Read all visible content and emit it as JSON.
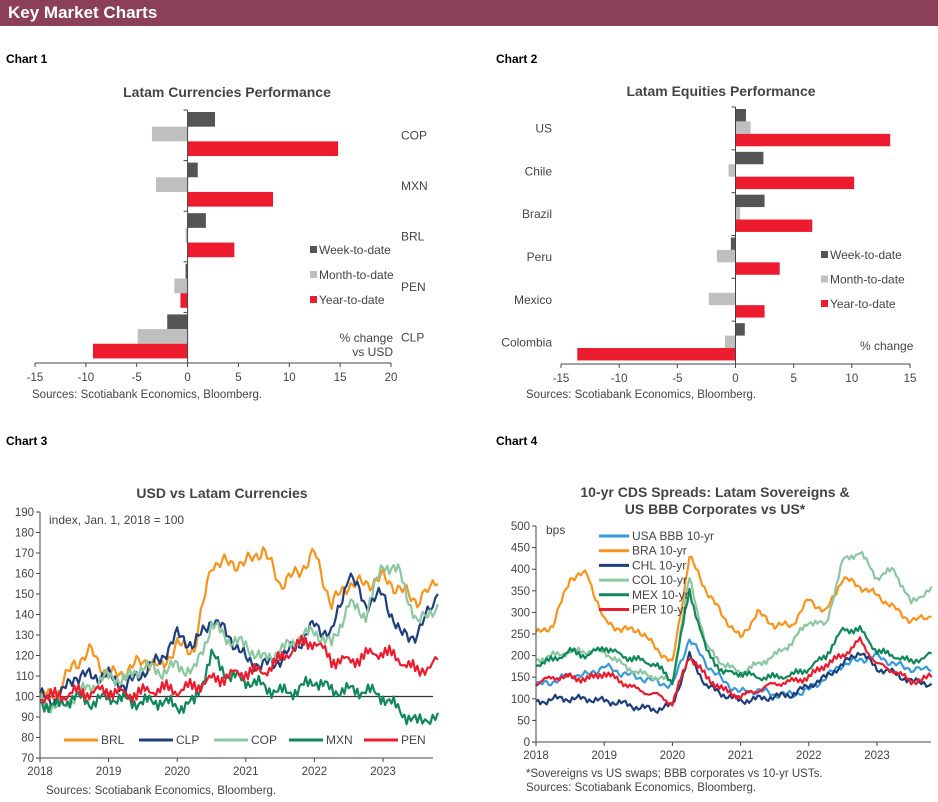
{
  "header": {
    "title": "Key Market Charts"
  },
  "labels": [
    "Chart 1",
    "Chart 2",
    "Chart 3",
    "Chart 4"
  ],
  "colors": {
    "header": "#8c3f58",
    "wtd": "#555555",
    "mtd": "#bfbfbf",
    "ytd": "#ec1c2e"
  },
  "chart_data": [
    {
      "type": "bar",
      "orientation": "horizontal",
      "title": "Latam Currencies Performance",
      "categories": [
        "COP",
        "MXN",
        "BRL",
        "PEN",
        "CLP"
      ],
      "series": [
        {
          "name": "Week-to-date",
          "color": "#555555",
          "values": [
            2.7,
            1.0,
            1.8,
            -0.2,
            -2.0
          ]
        },
        {
          "name": "Month-to-date",
          "color": "#bfbfbf",
          "values": [
            -3.5,
            -3.1,
            -0.2,
            -1.3,
            -4.9
          ]
        },
        {
          "name": "Year-to-date",
          "color": "#ec1c2e",
          "values": [
            14.8,
            8.4,
            4.6,
            -0.7,
            -9.3
          ]
        }
      ],
      "xlim": [
        -15,
        20
      ],
      "xticks": [
        "-15",
        "-10",
        "-5",
        "0",
        "5",
        "10",
        "15",
        "20"
      ],
      "note": [
        "% change",
        "vs USD"
      ],
      "legend": "right",
      "source": "Sources: Scotiabank Economics, Bloomberg."
    },
    {
      "type": "bar",
      "orientation": "horizontal",
      "title": "Latam Equities Performance",
      "categories": [
        "US",
        "Chile",
        "Brazil",
        "Peru",
        "Mexico",
        "Colombia"
      ],
      "series": [
        {
          "name": "Week-to-date",
          "color": "#555555",
          "values": [
            0.9,
            2.4,
            2.5,
            -0.4,
            0,
            0.8
          ]
        },
        {
          "name": "Month-to-date",
          "color": "#bfbfbf",
          "values": [
            1.3,
            -0.6,
            0.4,
            -1.6,
            -2.3,
            -0.9
          ]
        },
        {
          "name": "Year-to-date",
          "color": "#ec1c2e",
          "values": [
            13.3,
            10.2,
            6.6,
            3.8,
            2.5,
            -13.6
          ]
        }
      ],
      "xlim": [
        -15,
        15
      ],
      "xticks": [
        "-15",
        "-10",
        "-5",
        "0",
        "5",
        "10",
        "15"
      ],
      "note": [
        "% change"
      ],
      "legend": "right",
      "source": "Sources: Scotiabank Economics, Bloomberg."
    },
    {
      "type": "line",
      "title": "USD vs Latam Currencies",
      "subtitle": "index, Jan. 1, 2018 = 100",
      "ylim": [
        70,
        190
      ],
      "yticks": [
        "70",
        "80",
        "90",
        "100",
        "110",
        "120",
        "130",
        "140",
        "150",
        "160",
        "170",
        "180",
        "190"
      ],
      "xticks": [
        "2018",
        "2019",
        "2020",
        "2021",
        "2022",
        "2023"
      ],
      "xlim": [
        2018,
        2023.8
      ],
      "x": [
        2018,
        2018.25,
        2018.5,
        2018.75,
        2019,
        2019.25,
        2019.5,
        2019.75,
        2020,
        2020.25,
        2020.5,
        2020.75,
        2021,
        2021.25,
        2021.5,
        2021.75,
        2022,
        2022.25,
        2022.5,
        2022.75,
        2023,
        2023.25,
        2023.5,
        2023.8
      ],
      "series": [
        {
          "name": "BRL",
          "color": "#f7941d",
          "values": [
            100,
            102,
            116,
            122,
            110,
            112,
            118,
            114,
            125,
            123,
            165,
            165,
            165,
            172,
            155,
            160,
            170,
            145,
            155,
            155,
            158,
            152,
            147,
            155
          ]
        },
        {
          "name": "CLP",
          "color": "#1f3f7a",
          "values": [
            100,
            98,
            110,
            110,
            110,
            105,
            112,
            118,
            130,
            125,
            138,
            130,
            118,
            115,
            118,
            125,
            135,
            130,
            160,
            145,
            150,
            130,
            130,
            150
          ]
        },
        {
          "name": "COP",
          "color": "#8cc7a0",
          "values": [
            98,
            95,
            100,
            105,
            110,
            108,
            115,
            112,
            115,
            112,
            135,
            128,
            125,
            118,
            122,
            128,
            132,
            125,
            145,
            140,
            165,
            160,
            135,
            145
          ]
        },
        {
          "name": "MXN",
          "color": "#11875a",
          "values": [
            97,
            95,
            100,
            97,
            100,
            98,
            97,
            98,
            95,
            97,
            120,
            110,
            108,
            105,
            102,
            103,
            108,
            103,
            103,
            103,
            100,
            93,
            87,
            92
          ]
        },
        {
          "name": "PEN",
          "color": "#ec1c2e",
          "values": [
            100,
            100,
            102,
            102,
            103,
            101,
            102,
            104,
            103,
            105,
            108,
            110,
            112,
            112,
            118,
            125,
            127,
            118,
            117,
            120,
            122,
            118,
            112,
            118
          ]
        }
      ],
      "reference_line": 100,
      "legend": "bottom",
      "source": "Sources: Scotiabank Economics, Bloomberg."
    },
    {
      "type": "line",
      "title": [
        "10-yr CDS Spreads: Latam Sovereigns &",
        "US BBB Corporates vs US*"
      ],
      "subtitle": "bps",
      "ylim": [
        0,
        500
      ],
      "yticks": [
        "0",
        "50",
        "100",
        "150",
        "200",
        "250",
        "300",
        "350",
        "400",
        "450",
        "500"
      ],
      "xticks": [
        "2018",
        "2019",
        "2020",
        "2021",
        "2022",
        "2023"
      ],
      "xlim": [
        2018,
        2023.8
      ],
      "x": [
        2018,
        2018.25,
        2018.5,
        2018.75,
        2019,
        2019.25,
        2019.5,
        2019.75,
        2020,
        2020.25,
        2020.5,
        2020.75,
        2021,
        2021.25,
        2021.5,
        2021.75,
        2022,
        2022.25,
        2022.5,
        2022.75,
        2023,
        2023.25,
        2023.5,
        2023.8
      ],
      "series": [
        {
          "name": "USA  BBB 10-yr",
          "color": "#3a9ad9",
          "values": [
            130,
            140,
            155,
            155,
            175,
            160,
            150,
            140,
            130,
            240,
            180,
            140,
            115,
            120,
            110,
            110,
            120,
            150,
            180,
            190,
            200,
            180,
            170,
            165
          ]
        },
        {
          "name": "BRA  10-yr",
          "color": "#f7941d",
          "values": [
            250,
            270,
            380,
            390,
            280,
            260,
            260,
            220,
            180,
            430,
            350,
            290,
            240,
            300,
            270,
            270,
            330,
            300,
            380,
            360,
            340,
            310,
            280,
            290
          ]
        },
        {
          "name": "CHL  10-yr",
          "color": "#1f3f7a",
          "values": [
            90,
            100,
            100,
            100,
            95,
            90,
            80,
            75,
            85,
            200,
            130,
            110,
            95,
            100,
            105,
            110,
            130,
            150,
            180,
            210,
            170,
            160,
            140,
            135
          ]
        },
        {
          "name": "COL  10-yr",
          "color": "#8cc7a0",
          "values": [
            190,
            200,
            210,
            210,
            210,
            180,
            160,
            150,
            140,
            380,
            220,
            180,
            160,
            180,
            200,
            230,
            280,
            270,
            420,
            440,
            380,
            400,
            320,
            360
          ]
        },
        {
          "name": "MEX  10-yr",
          "color": "#11875a",
          "values": [
            180,
            190,
            210,
            200,
            220,
            200,
            190,
            180,
            140,
            350,
            210,
            160,
            160,
            150,
            150,
            155,
            170,
            200,
            260,
            260,
            210,
            200,
            185,
            205
          ]
        },
        {
          "name": "PER  10-yr",
          "color": "#ec1c2e",
          "values": [
            135,
            150,
            150,
            145,
            160,
            140,
            120,
            110,
            90,
            200,
            150,
            120,
            105,
            120,
            135,
            140,
            150,
            180,
            200,
            235,
            180,
            165,
            140,
            150
          ]
        }
      ],
      "legend": "top-left",
      "footnote": "*Sovereigns vs US swaps; BBB corporates vs 10-yr USTs.",
      "source": "Sources: Scotiabank Economics, Bloomberg."
    }
  ]
}
